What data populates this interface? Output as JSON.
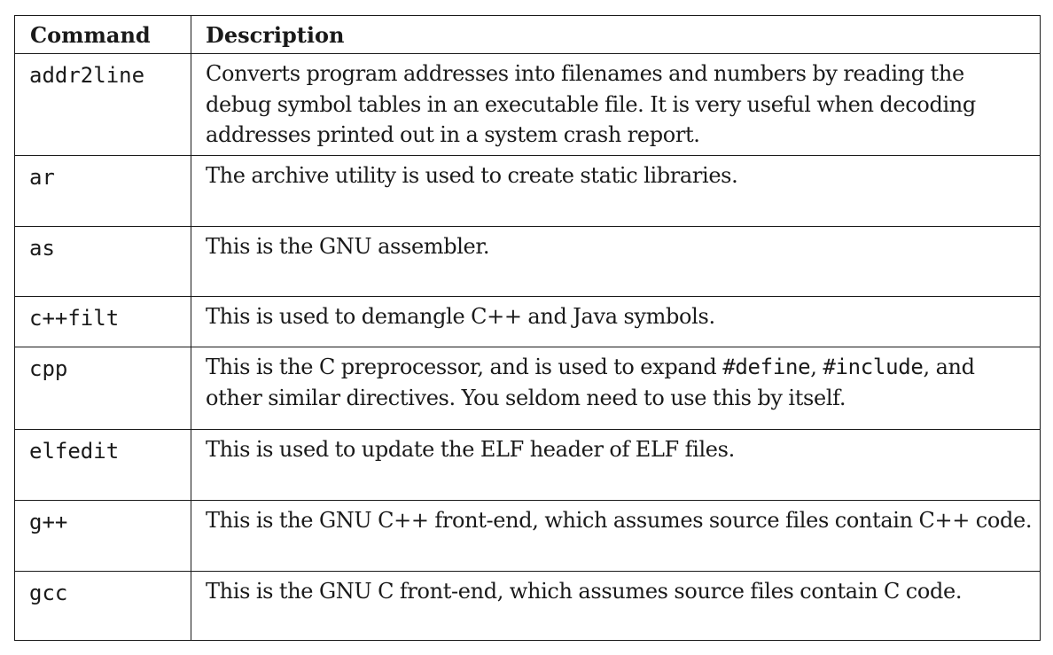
{
  "table": {
    "headers": {
      "command": "Command",
      "description": "Description"
    },
    "rows": [
      {
        "command": "addr2line",
        "description": "Converts program addresses into filenames and numbers by reading the debug symbol tables in an executable file. It is very useful when decoding addresses printed out in a system crash report."
      },
      {
        "command": "ar",
        "description": "The archive utility is used to create static libraries."
      },
      {
        "command": "as",
        "description": "This is the GNU assembler."
      },
      {
        "command": "c++filt",
        "description": "This is used to demangle C++ and Java symbols."
      },
      {
        "command": "cpp",
        "description_parts": {
          "p1": "This is the C preprocessor, and is used to expand ",
          "code1": "#define",
          "p2": ", ",
          "code2": "#include",
          "p3": ", and other similar directives. You seldom need to use this by itself."
        }
      },
      {
        "command": "elfedit",
        "description": "This is used to update the ELF header of ELF files."
      },
      {
        "command": "g++",
        "description": "This is the GNU C++ front-end, which assumes source files contain C++ code."
      },
      {
        "command": "gcc",
        "description": "This is the GNU C front-end, which assumes source files contain C code."
      }
    ]
  }
}
